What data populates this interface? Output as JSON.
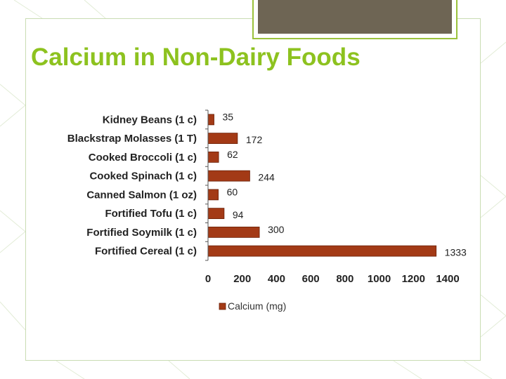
{
  "title": "Calcium in Non-Dairy Foods",
  "colors": {
    "accent": "#8dc21f",
    "bar_fill": "#a33a16",
    "bar_stroke": "#6a2008",
    "tab": "#6e6554"
  },
  "chart_data": {
    "type": "bar",
    "orientation": "horizontal",
    "categories": [
      "Kidney Beans (1 c)",
      "Blackstrap Molasses (1 T)",
      "Cooked Broccoli (1 c)",
      "Cooked Spinach (1 c)",
      "Canned Salmon (1 oz)",
      "Fortified Tofu (1 c)",
      "Fortified Soymilk (1 c)",
      "Fortified Cereal (1 c)"
    ],
    "series": [
      {
        "name": "Calcium (mg)",
        "values": [
          35,
          172,
          62,
          244,
          60,
          94,
          300,
          1333
        ]
      }
    ],
    "xlim": [
      0,
      1400
    ],
    "xticks": [
      0,
      200,
      400,
      600,
      800,
      1000,
      1200,
      1400
    ],
    "data_labels": true,
    "grid": false,
    "legend_position": "bottom"
  }
}
